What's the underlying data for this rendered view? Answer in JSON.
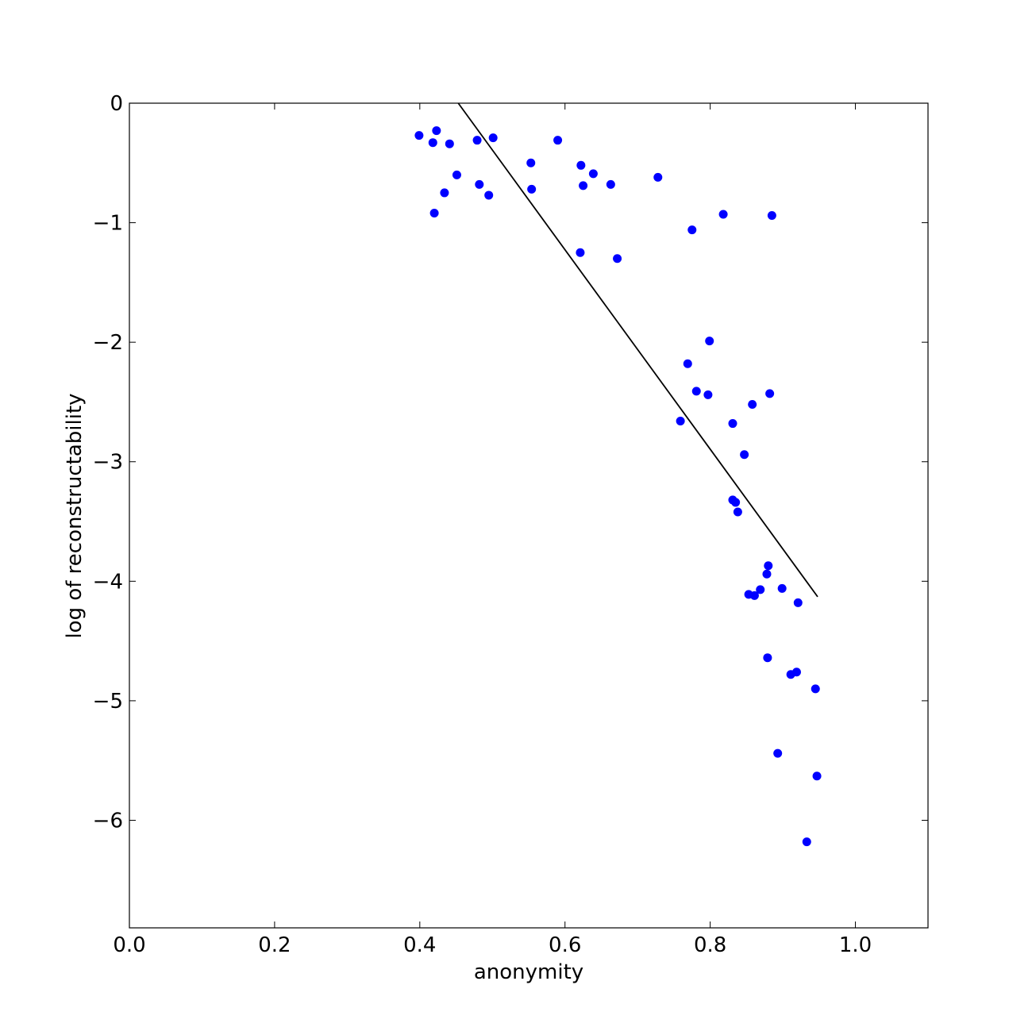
{
  "chart_data": {
    "type": "scatter",
    "xlabel": "anonymity",
    "ylabel": "log of reconstructability",
    "xlim": [
      0,
      1.1
    ],
    "ylim": [
      -6.9,
      0
    ],
    "xticks": [
      {
        "value": 0,
        "label": "0.0"
      },
      0.2,
      0.4,
      0.6,
      0.8,
      {
        "value": 1,
        "label": "1.0"
      }
    ],
    "yticks": [
      0,
      {
        "value": -1,
        "label": "−1"
      },
      {
        "value": -2,
        "label": "−2"
      },
      {
        "value": -3,
        "label": "−3"
      },
      {
        "value": -4,
        "label": "−4"
      },
      {
        "value": -5,
        "label": "−5"
      },
      {
        "value": -6,
        "label": "−6"
      }
    ],
    "series": [
      {
        "color": "#0000ff",
        "x": [
          0.399,
          0.418,
          0.423,
          0.441,
          0.42,
          0.434,
          0.451,
          0.479,
          0.482,
          0.495,
          0.501,
          0.553,
          0.554,
          0.59,
          0.622,
          0.625,
          0.639,
          0.663,
          0.621,
          0.672,
          0.728,
          0.775,
          0.818,
          0.885,
          0.799,
          0.769,
          0.781,
          0.797,
          0.882,
          0.858,
          0.759,
          0.831,
          0.847,
          0.831,
          0.835,
          0.838,
          0.88,
          0.878,
          0.853,
          0.861,
          0.869,
          0.899,
          0.921,
          0.879,
          0.911,
          0.919,
          0.945,
          0.893,
          0.947,
          0.933
        ],
        "values": [
          -0.27,
          -0.33,
          -0.23,
          -0.34,
          -0.92,
          -0.75,
          -0.6,
          -0.31,
          -0.68,
          -0.77,
          -0.29,
          -0.5,
          -0.72,
          -0.31,
          -0.52,
          -0.69,
          -0.59,
          -0.68,
          -1.25,
          -1.3,
          -0.62,
          -1.06,
          -0.93,
          -0.94,
          -1.99,
          -2.18,
          -2.41,
          -2.44,
          -2.43,
          -2.52,
          -2.66,
          -2.68,
          -2.94,
          -3.32,
          -3.34,
          -3.42,
          -3.87,
          -3.94,
          -4.11,
          -4.12,
          -4.07,
          -4.06,
          -4.18,
          -4.64,
          -4.78,
          -4.76,
          -4.9,
          -5.44,
          -5.63,
          -6.18
        ]
      }
    ],
    "line": {
      "color": "#000000",
      "x": [
        0.453,
        0.948
      ],
      "values": [
        0,
        -4.13
      ]
    }
  }
}
